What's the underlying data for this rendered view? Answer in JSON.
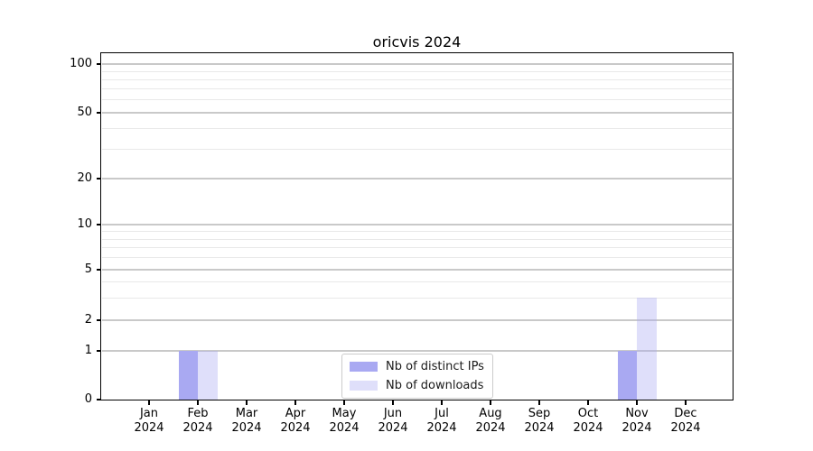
{
  "chart_data": {
    "type": "bar",
    "title": "oricvis 2024",
    "categories": [
      "Jan",
      "Feb",
      "Mar",
      "Apr",
      "May",
      "Jun",
      "Jul",
      "Aug",
      "Sep",
      "Oct",
      "Nov",
      "Dec"
    ],
    "year": "2024",
    "series": [
      {
        "name": "Nb of distinct IPs",
        "color": "#a9a9f2",
        "values": [
          0,
          1,
          0,
          0,
          0,
          0,
          0,
          0,
          0,
          0,
          1,
          0
        ]
      },
      {
        "name": "Nb of downloads",
        "color": "rgba(169,169,242,0.37)",
        "values": [
          0,
          1,
          0,
          0,
          0,
          0,
          0,
          0,
          0,
          0,
          3,
          0
        ]
      }
    ],
    "yscale": "symlog",
    "y_major_ticks": [
      0,
      1,
      2,
      5,
      10,
      20,
      50,
      100
    ],
    "y_minor_ticks": [
      3,
      4,
      6,
      7,
      8,
      9,
      30,
      40,
      60,
      70,
      80,
      90
    ],
    "ylim": [
      0,
      117
    ],
    "grid": "horizontal",
    "legend_position": "lower-center-inside",
    "colors": {
      "major_grid": "#c9c9c9",
      "minor_grid": "#e9e9e9",
      "axis": "#000000",
      "legend_border": "#cccccc"
    }
  }
}
